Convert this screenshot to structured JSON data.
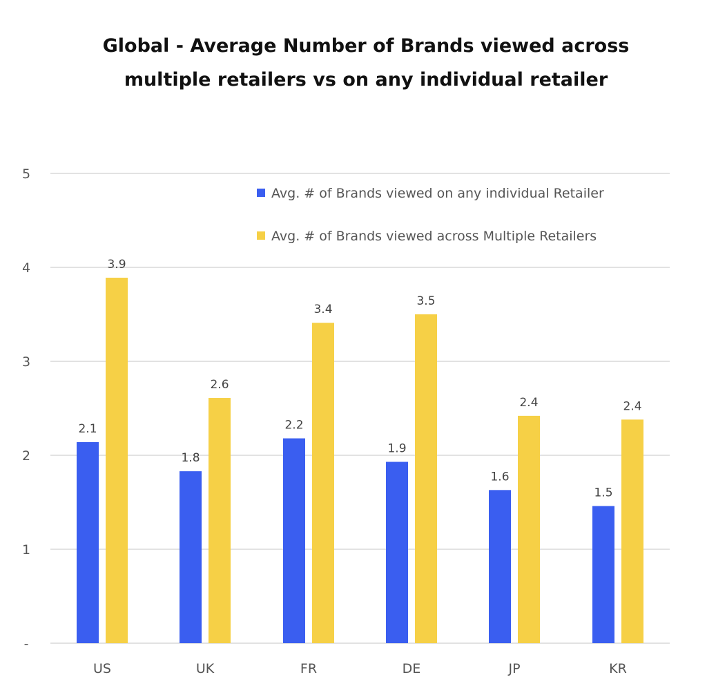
{
  "chart_data": {
    "type": "bar",
    "title": "Global - Average Number of Brands viewed across multiple retailers vs on any individual retailer",
    "title_lines": [
      "Global - Average Number of Brands viewed across",
      "multiple retailers vs on any individual retailer"
    ],
    "categories": [
      "US",
      "UK",
      "FR",
      "DE",
      "JP",
      "KR"
    ],
    "series": [
      {
        "name": "Avg. # of Brands viewed on any individual Retailer",
        "color": "#3a5ef0",
        "values": [
          2.14,
          1.83,
          2.18,
          1.93,
          1.63,
          1.46
        ],
        "labels": [
          "2.1",
          "1.8",
          "2.2",
          "1.9",
          "1.6",
          "1.5"
        ]
      },
      {
        "name": "Avg. # of Brands viewed across Multiple Retailers",
        "color": "#f6d046",
        "values": [
          3.89,
          2.61,
          3.41,
          3.5,
          2.42,
          2.38
        ],
        "labels": [
          "3.9",
          "2.6",
          "3.4",
          "3.5",
          "2.4",
          "2.4"
        ]
      }
    ],
    "yticks": [
      "-",
      "1",
      "2",
      "3",
      "4",
      "5"
    ],
    "ylim": [
      0,
      5
    ],
    "grid": true,
    "legend_position": "top-right",
    "xlabel": "",
    "ylabel": ""
  }
}
